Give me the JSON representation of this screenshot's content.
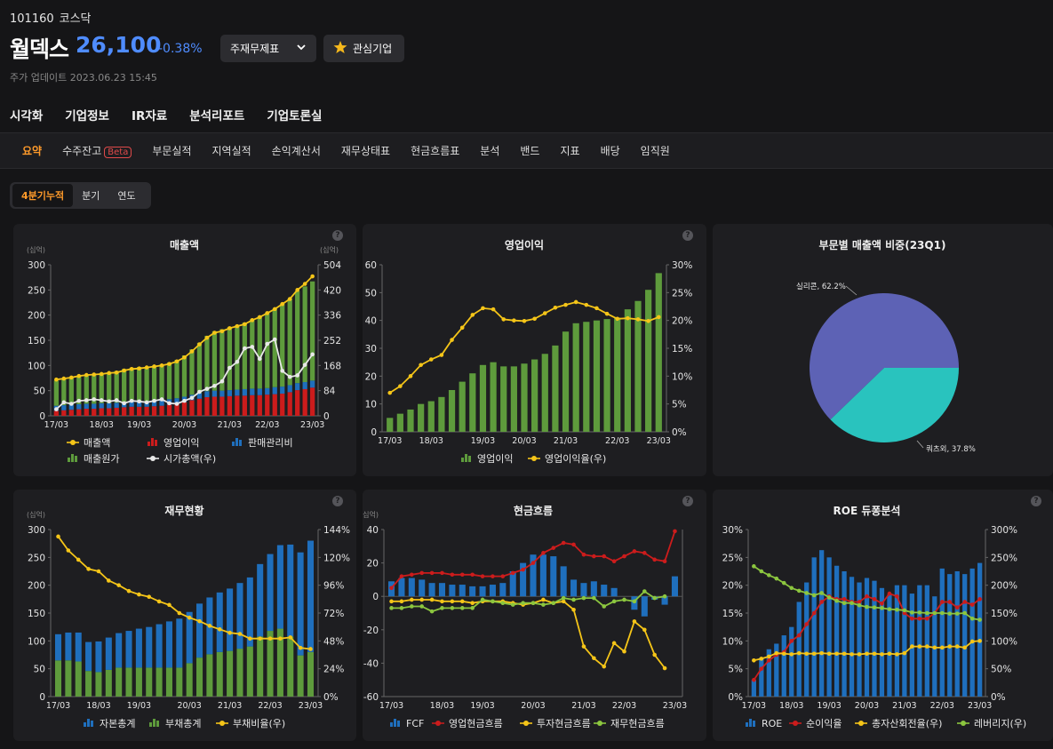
{
  "header": {
    "code": "101160",
    "market": "코스닥",
    "name": "월덱스",
    "price": "26,100",
    "change": "-0.38%",
    "finance_btn": "주재무제표",
    "watch_btn": "관심기업",
    "updated": "주가 업데이트 2023.06.23 15:45"
  },
  "main_nav": [
    "시각화",
    "기업정보",
    "IR자료",
    "분석리포트",
    "기업토론실"
  ],
  "sub_nav": {
    "items": [
      "요약",
      "수주잔고",
      "부문실적",
      "지역실적",
      "손익계산서",
      "재무상태표",
      "현금흐름표",
      "분석",
      "밴드",
      "지표",
      "배당",
      "임직원"
    ],
    "beta": "Beta"
  },
  "period_tabs": [
    "4분기누적",
    "분기",
    "연도"
  ],
  "colors": {
    "green": "#5e9b3c",
    "red": "#cc1c1c",
    "blue": "#1f6fbd",
    "yellow": "#f5c518",
    "white": "#e8e8e8",
    "lime": "#8cc63f",
    "purple": "#5d62b5",
    "teal": "#29c3be"
  },
  "chart_data": [
    {
      "id": "revenue",
      "type": "bar",
      "title": "매출액",
      "unit_left": "(십억)",
      "unit_right": "(십억)",
      "xticks": [
        "17/03",
        "18/03",
        "19/03",
        "20/03",
        "21/03",
        "22/03",
        "23/03"
      ],
      "ylim": [
        0,
        300
      ],
      "y2lim": [
        0,
        504
      ],
      "yticks": [
        "0",
        "50",
        "100",
        "150",
        "200",
        "250",
        "300"
      ],
      "y2ticks": [
        "0",
        "84",
        "168",
        "252",
        "336",
        "420",
        "504"
      ],
      "legend": [
        [
          "line",
          "yellow",
          "매출액"
        ],
        [
          "bar",
          "red",
          "영업이익"
        ],
        [
          "bar",
          "blue",
          "판매관리비"
        ],
        [
          "bar",
          "green",
          "매출원가"
        ],
        [
          "line",
          "white",
          "시가총액(우)"
        ]
      ],
      "series": [
        {
          "name": "매출원가",
          "kind": "stack",
          "color": "green",
          "values": [
            50,
            52,
            54,
            56,
            57,
            59,
            60,
            61,
            63,
            66,
            67,
            68,
            68,
            70,
            71,
            73,
            76,
            82,
            90,
            100,
            110,
            118,
            122,
            125,
            128,
            132,
            138,
            144,
            150,
            156,
            165,
            172,
            183,
            190,
            197
          ]
        },
        {
          "name": "판매관리비",
          "kind": "stack",
          "color": "blue",
          "values": [
            10,
            10,
            10,
            10,
            10,
            10,
            10,
            10,
            10,
            10,
            10,
            11,
            11,
            11,
            11,
            11,
            11,
            11,
            11,
            11,
            12,
            12,
            12,
            12,
            12,
            13,
            13,
            13,
            13,
            14,
            14,
            14,
            14,
            14,
            14
          ]
        },
        {
          "name": "영업이익",
          "kind": "stack",
          "color": "red",
          "values": [
            10,
            11,
            12,
            13,
            14,
            14,
            15,
            15,
            16,
            17,
            18,
            18,
            18,
            19,
            20,
            22,
            24,
            27,
            31,
            34,
            37,
            38,
            38,
            39,
            40,
            40,
            41,
            41,
            42,
            43,
            44,
            47,
            51,
            53,
            56
          ]
        },
        {
          "name": "매출액",
          "kind": "line",
          "axis": "left",
          "color": "yellow",
          "values": [
            72,
            74,
            76,
            79,
            81,
            82,
            83,
            85,
            86,
            90,
            93,
            94,
            96,
            98,
            100,
            103,
            108,
            116,
            128,
            142,
            155,
            165,
            168,
            174,
            178,
            182,
            190,
            196,
            204,
            212,
            222,
            232,
            250,
            262,
            277
          ]
        },
        {
          "name": "시가총액(우)",
          "kind": "line",
          "axis": "right",
          "color": "white",
          "values": [
            22,
            45,
            40,
            50,
            52,
            55,
            52,
            48,
            52,
            42,
            50,
            48,
            45,
            50,
            55,
            42,
            40,
            50,
            60,
            80,
            90,
            100,
            115,
            160,
            180,
            225,
            230,
            190,
            240,
            255,
            150,
            130,
            135,
            170,
            205
          ]
        }
      ]
    },
    {
      "id": "op_profit",
      "type": "bar",
      "title": "영업이익",
      "xticks": [
        "17/03",
        "18/03",
        "19/03",
        "20/03",
        "21/03",
        "22/03",
        "23/03"
      ],
      "ylim": [
        0,
        60
      ],
      "y2lim": [
        0,
        30
      ],
      "yticks": [
        "0",
        "10",
        "20",
        "30",
        "40",
        "50",
        "60"
      ],
      "y2ticks": [
        "0%",
        "5%",
        "10%",
        "15%",
        "20%",
        "25%",
        "30%"
      ],
      "legend": [
        [
          "bar",
          "green",
          "영업이익"
        ],
        [
          "line",
          "yellow",
          "영업이익율(우)"
        ]
      ],
      "series": [
        {
          "name": "영업이익",
          "kind": "bar",
          "color": "green",
          "values": [
            5,
            6.5,
            8,
            10,
            11,
            12.5,
            15,
            18,
            21,
            24,
            25,
            23.5,
            23.5,
            24.5,
            26,
            28,
            31,
            36,
            39,
            39.5,
            40,
            40.5,
            41,
            44,
            47,
            51,
            57
          ]
        },
        {
          "name": "영업이익율(우)",
          "kind": "line",
          "axis": "right",
          "color": "yellow",
          "values": [
            7,
            8.2,
            10,
            12,
            13,
            13.8,
            16.5,
            18.7,
            21,
            22.2,
            22,
            20.2,
            20,
            19.9,
            20.3,
            21.3,
            22.3,
            22.8,
            23.3,
            22.8,
            22.2,
            21.2,
            20.3,
            20.4,
            20.2,
            19.9,
            20.6
          ]
        }
      ]
    },
    {
      "id": "segment_pie",
      "type": "pie",
      "title": "부문별 매출액 비중(23Q1)",
      "slices": [
        {
          "label": "실리콘, 62.2%",
          "value": 62.2,
          "color": "purple"
        },
        {
          "label": "쿼츠외, 37.8%",
          "value": 37.8,
          "color": "teal"
        }
      ]
    },
    {
      "id": "balance",
      "type": "bar",
      "title": "재무현황",
      "unit_left": "(십억)",
      "xticks": [
        "17/03",
        "18/03",
        "19/03",
        "20/03",
        "21/03",
        "22/03",
        "23/03"
      ],
      "ylim": [
        0,
        300
      ],
      "y2lim": [
        0,
        144
      ],
      "yticks": [
        "0",
        "50",
        "100",
        "150",
        "200",
        "250",
        "300"
      ],
      "y2ticks": [
        "0%",
        "24%",
        "48%",
        "72%",
        "96%",
        "120%",
        "144%"
      ],
      "legend": [
        [
          "bar",
          "blue",
          "자본총계"
        ],
        [
          "bar",
          "green",
          "부채총계"
        ],
        [
          "line",
          "yellow",
          "부채비율(우)"
        ]
      ],
      "series": [
        {
          "name": "자본총계",
          "kind": "stack",
          "color": "blue",
          "values": [
            47,
            50,
            52,
            52,
            55,
            58,
            62,
            66,
            70,
            73,
            78,
            83,
            88,
            92,
            97,
            102,
            107,
            112,
            118,
            124,
            130,
            138,
            150,
            165,
            185,
            200
          ]
        },
        {
          "name": "부채총계",
          "kind": "stack",
          "color": "green",
          "values": [
            65,
            65,
            63,
            46,
            44,
            48,
            52,
            52,
            52,
            52,
            52,
            52,
            52,
            60,
            70,
            76,
            80,
            82,
            86,
            90,
            108,
            118,
            122,
            108,
            74,
            80
          ]
        },
        {
          "name": "부채비율(우)",
          "kind": "line",
          "axis": "right",
          "color": "yellow",
          "values": [
            138,
            126,
            118,
            110,
            108,
            100,
            96,
            91,
            88,
            86,
            82,
            79,
            72,
            68,
            65,
            61,
            58,
            55,
            54,
            50,
            50,
            50,
            50,
            51,
            42,
            41
          ]
        }
      ]
    },
    {
      "id": "cashflow",
      "type": "bar",
      "title": "현금흐름",
      "unit_left": "(십억)",
      "xticks": [
        "17/03",
        "18/03",
        "19/03",
        "20/03",
        "21/03",
        "22/03",
        "23/03"
      ],
      "ylim": [
        -60,
        40
      ],
      "yticks": [
        "-60",
        "-40",
        "-20",
        "0",
        "20",
        "40"
      ],
      "legend": [
        [
          "bar",
          "blue",
          "FCF"
        ],
        [
          "line",
          "red",
          "영업현금흐름"
        ],
        [
          "line",
          "yellow",
          "투자현금흐름"
        ],
        [
          "line",
          "lime",
          "재무현금흐름"
        ]
      ],
      "series": [
        {
          "name": "FCF",
          "kind": "bar",
          "color": "blue",
          "values": [
            9,
            11,
            11,
            10,
            8,
            8,
            7,
            7,
            6,
            6,
            7,
            8,
            15,
            20,
            25,
            25,
            24,
            18,
            10,
            8,
            9,
            7,
            5,
            0,
            -8,
            -12,
            -2,
            -5,
            12
          ]
        },
        {
          "name": "영업현금흐름",
          "kind": "line",
          "color": "red",
          "values": [
            5,
            12,
            13,
            14,
            14,
            14,
            13,
            13,
            13,
            12,
            12,
            12,
            14,
            16,
            20,
            26,
            29,
            32,
            31,
            25,
            24,
            24,
            21,
            24,
            27,
            26,
            22,
            21,
            39
          ]
        },
        {
          "name": "투자현금흐름",
          "kind": "line",
          "color": "yellow",
          "values": [
            -3,
            -3,
            -2,
            -2,
            -2,
            -3,
            -3,
            -3,
            -4,
            -3,
            -3,
            -3,
            -4,
            -5,
            -4,
            -2,
            -4,
            -3,
            -8,
            -30,
            -37,
            -42,
            -28,
            -33,
            -15,
            -20,
            -35,
            -43
          ]
        },
        {
          "name": "재무현금흐름",
          "kind": "line",
          "color": "lime",
          "values": [
            -7,
            -7,
            -6,
            -6,
            -9,
            -7,
            -7,
            -7,
            -7,
            -2,
            -3,
            -4,
            -5,
            -4,
            -4,
            -5,
            -4,
            -1,
            -2,
            -1,
            -1,
            -6,
            -3,
            -2,
            -3,
            3,
            -1,
            0
          ]
        }
      ]
    },
    {
      "id": "roe",
      "type": "bar",
      "title": "ROE 듀퐁분석",
      "xticks": [
        "17/03",
        "18/03",
        "19/03",
        "20/03",
        "21/03",
        "22/03",
        "23/03"
      ],
      "ylim": [
        0,
        30
      ],
      "y2lim": [
        0,
        300
      ],
      "yticks": [
        "0%",
        "5%",
        "10%",
        "15%",
        "20%",
        "25%",
        "30%"
      ],
      "y2ticks": [
        "0%",
        "50%",
        "100%",
        "150%",
        "200%",
        "250%",
        "300%"
      ],
      "legend": [
        [
          "bar",
          "blue",
          "ROE"
        ],
        [
          "line",
          "red",
          "순이익율"
        ],
        [
          "line",
          "yellow",
          "총자산회전율(우)"
        ],
        [
          "line",
          "lime",
          "레버리지(우)"
        ]
      ],
      "series": [
        {
          "name": "ROE",
          "kind": "bar",
          "color": "blue",
          "values": [
            3,
            7,
            8.5,
            9.5,
            11,
            12.5,
            17,
            20.5,
            25,
            26.3,
            25,
            23.5,
            22.5,
            21.5,
            20.5,
            21.3,
            20.8,
            19.5,
            18.3,
            20,
            20,
            18.5,
            20,
            20,
            18,
            23,
            22,
            22.5,
            22,
            23,
            24
          ]
        },
        {
          "name": "순이익율",
          "kind": "line",
          "color": "red",
          "values": [
            3,
            5,
            6.5,
            7.5,
            8,
            10,
            11,
            13,
            15,
            17,
            18,
            17.5,
            17.5,
            17,
            17,
            18,
            17.5,
            16.7,
            18.5,
            18,
            15,
            14,
            14,
            14,
            15,
            17,
            17,
            16,
            17,
            16.5,
            17.5
          ]
        },
        {
          "name": "총자산회전율(우)",
          "kind": "line",
          "axis": "right",
          "color": "yellow",
          "values": [
            65,
            68,
            72,
            78,
            77,
            76,
            78,
            77,
            77,
            78,
            77,
            77,
            77,
            76,
            76,
            77,
            77,
            76,
            77,
            76,
            78,
            90,
            90,
            90,
            88,
            88,
            90,
            90,
            88,
            99,
            100
          ]
        },
        {
          "name": "레버리지(우)",
          "kind": "line",
          "axis": "right",
          "color": "lime",
          "values": [
            234,
            225,
            218,
            212,
            204,
            195,
            190,
            186,
            182,
            186,
            178,
            172,
            168,
            168,
            164,
            161,
            160,
            159,
            157,
            156,
            155,
            151,
            151,
            150,
            150,
            150,
            149,
            149,
            150,
            140,
            138
          ]
        }
      ]
    }
  ]
}
